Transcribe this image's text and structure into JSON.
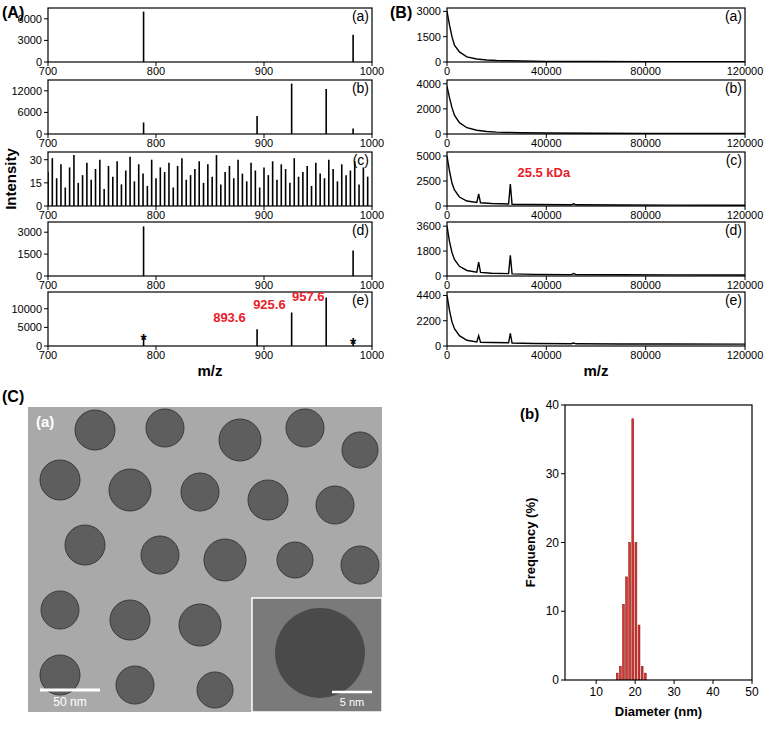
{
  "panel_labels": [
    "(A)",
    "(B)",
    "(C)"
  ],
  "image": {
    "label": "(a)",
    "scale_bar": "50 nm",
    "inset_scale_bar": "5 nm"
  },
  "chart_data": [
    {
      "type": "stem",
      "title": "(a)",
      "xlim": [
        700,
        1000
      ],
      "xticks": [
        700,
        800,
        900,
        1000
      ],
      "ylim": [
        0,
        7500
      ],
      "yticks": [
        0,
        3000,
        6000
      ],
      "color": "#000000",
      "x": [
        788.5,
        982.5
      ],
      "values": [
        7000,
        3800
      ]
    },
    {
      "type": "stem",
      "title": "(b)",
      "xlim": [
        700,
        1000
      ],
      "xticks": [
        700,
        800,
        900,
        1000
      ],
      "ylim": [
        0,
        15000
      ],
      "yticks": [
        0,
        6000,
        12000
      ],
      "color": "#000000",
      "x": [
        788.5,
        893.6,
        925.6,
        957.6,
        982.5
      ],
      "values": [
        3200,
        5000,
        14000,
        12500,
        1500
      ]
    },
    {
      "type": "stem",
      "title": "(c)",
      "ylabel": "Intensity",
      "xlim": [
        700,
        1000
      ],
      "xticks": [
        700,
        800,
        900,
        1000
      ],
      "ylim": [
        0,
        35
      ],
      "yticks": [
        0,
        15,
        30
      ],
      "color": "#000000",
      "x": [
        700,
        704,
        708,
        712,
        716,
        720,
        724,
        728,
        732,
        736,
        740,
        744,
        748,
        752,
        756,
        760,
        764,
        768,
        772,
        776,
        780,
        784,
        788,
        792,
        796,
        800,
        804,
        808,
        812,
        816,
        820,
        824,
        828,
        832,
        836,
        840,
        844,
        848,
        852,
        856,
        860,
        864,
        868,
        872,
        876,
        880,
        884,
        888,
        892,
        896,
        900,
        904,
        908,
        912,
        916,
        920,
        924,
        928,
        932,
        936,
        940,
        944,
        948,
        952,
        956,
        960,
        964,
        968,
        972,
        976,
        980,
        984,
        988,
        992,
        996
      ],
      "values": [
        22,
        31,
        18,
        27,
        12,
        25,
        33,
        15,
        20,
        28,
        17,
        24,
        30,
        11,
        26,
        19,
        29,
        14,
        23,
        32,
        16,
        27,
        21,
        13,
        30,
        18,
        25,
        22,
        28,
        12,
        26,
        31,
        17,
        20,
        24,
        29,
        15,
        27,
        19,
        33,
        14,
        22,
        26,
        18,
        30,
        21,
        16,
        28,
        23,
        12,
        25,
        20,
        29,
        17,
        27,
        24,
        15,
        31,
        19,
        22,
        26,
        13,
        28,
        21,
        18,
        30,
        24,
        16,
        27,
        20,
        23,
        29,
        14,
        25,
        19
      ]
    },
    {
      "type": "stem",
      "title": "(d)",
      "xlim": [
        700,
        1000
      ],
      "xticks": [
        700,
        800,
        900,
        1000
      ],
      "ylim": [
        0,
        3700
      ],
      "yticks": [
        0,
        1500,
        3000
      ],
      "color": "#000000",
      "x": [
        788.5,
        982.5
      ],
      "values": [
        3400,
        1750
      ]
    },
    {
      "type": "stem",
      "title": "(e)",
      "xlabel": "m/z",
      "xlim": [
        700,
        1000
      ],
      "xticks": [
        700,
        800,
        900,
        1000
      ],
      "ylim": [
        0,
        14500
      ],
      "yticks": [
        0,
        5000,
        10000
      ],
      "color": "#000000",
      "x": [
        788.5,
        893.6,
        925.6,
        957.6,
        982.5
      ],
      "values": [
        2000,
        4500,
        9000,
        13000,
        1000
      ],
      "annotations": [
        {
          "text": "893.6",
          "x": 868,
          "y": 6500,
          "color": "#e8202a"
        },
        {
          "text": "925.6",
          "x": 905,
          "y": 10000,
          "color": "#e8202a"
        },
        {
          "text": "957.6",
          "x": 941,
          "y": 12000,
          "color": "#e8202a"
        },
        {
          "text": "*",
          "x": 788.5,
          "y": 2400,
          "color": "#000000"
        },
        {
          "text": "*",
          "x": 982.5,
          "y": 1400,
          "color": "#000000"
        }
      ]
    },
    {
      "type": "line",
      "title": "(a)",
      "xlim": [
        0,
        120000
      ],
      "xticks": [
        0,
        40000,
        80000,
        120000
      ],
      "ylim": [
        0,
        3200
      ],
      "yticks": [
        0,
        1500,
        3000
      ],
      "color": "#000000",
      "x": [
        0,
        1000,
        2000,
        3000,
        5000,
        8000,
        12000,
        16000,
        20000,
        30000,
        40000,
        60000,
        80000,
        100000,
        120000
      ],
      "values": [
        3000,
        2200,
        1500,
        1000,
        600,
        300,
        180,
        120,
        90,
        60,
        40,
        30,
        25,
        20,
        20
      ]
    },
    {
      "type": "line",
      "title": "(b)",
      "xlim": [
        0,
        120000
      ],
      "xticks": [
        0,
        40000,
        80000,
        120000
      ],
      "ylim": [
        0,
        4300
      ],
      "yticks": [
        0,
        2000,
        4000
      ],
      "color": "#000000",
      "x": [
        0,
        1000,
        2000,
        3000,
        5000,
        8000,
        12000,
        16000,
        20000,
        30000,
        40000,
        60000,
        80000,
        100000,
        120000
      ],
      "values": [
        3800,
        2900,
        2100,
        1500,
        900,
        500,
        300,
        200,
        150,
        100,
        80,
        60,
        50,
        40,
        40
      ]
    },
    {
      "type": "line",
      "title": "(c)",
      "xlim": [
        0,
        120000
      ],
      "xticks": [
        0,
        40000,
        80000,
        120000
      ],
      "ylim": [
        0,
        5400
      ],
      "yticks": [
        0,
        2500,
        5000
      ],
      "color": "#000000",
      "x": [
        0,
        1000,
        2000,
        3000,
        5000,
        8000,
        12000,
        12750,
        13500,
        18000,
        24800,
        25500,
        26200,
        35000,
        50000,
        51000,
        52000,
        70000,
        90000,
        120000
      ],
      "values": [
        5000,
        3500,
        2300,
        1600,
        900,
        500,
        350,
        1200,
        320,
        250,
        200,
        2200,
        180,
        150,
        120,
        220,
        120,
        100,
        90,
        80
      ],
      "annotations": [
        {
          "text": "25.5 kDa",
          "x": 39000,
          "y": 2900,
          "color": "#e8202a"
        }
      ]
    },
    {
      "type": "line",
      "title": "(d)",
      "xlim": [
        0,
        120000
      ],
      "xticks": [
        0,
        40000,
        80000,
        120000
      ],
      "ylim": [
        0,
        3900
      ],
      "yticks": [
        0,
        1800,
        3600
      ],
      "color": "#000000",
      "x": [
        0,
        1000,
        2000,
        3000,
        5000,
        8000,
        12000,
        12750,
        13500,
        18000,
        24800,
        25500,
        26200,
        35000,
        50000,
        51000,
        52000,
        70000,
        90000,
        120000
      ],
      "values": [
        3600,
        2500,
        1700,
        1200,
        700,
        400,
        280,
        1000,
        260,
        200,
        170,
        1500,
        150,
        120,
        100,
        180,
        100,
        90,
        80,
        70
      ]
    },
    {
      "type": "line",
      "title": "(e)",
      "xlabel": "m/z",
      "xlim": [
        0,
        120000
      ],
      "xticks": [
        0,
        40000,
        80000,
        120000
      ],
      "ylim": [
        0,
        4700
      ],
      "yticks": [
        0,
        2200,
        4400
      ],
      "color": "#000000",
      "x": [
        0,
        1000,
        2000,
        3000,
        5000,
        8000,
        12000,
        12750,
        13500,
        18000,
        24800,
        25500,
        26200,
        35000,
        50000,
        51000,
        52000,
        70000,
        90000,
        120000
      ],
      "values": [
        4400,
        3100,
        2100,
        1500,
        900,
        500,
        350,
        900,
        330,
        300,
        280,
        1100,
        260,
        220,
        200,
        260,
        190,
        180,
        170,
        160
      ]
    },
    {
      "type": "histogram",
      "title": "(b)",
      "xlabel": "Diameter (nm)",
      "ylabel": "Frequency (%)",
      "xlim": [
        2,
        50
      ],
      "xticks": [
        10,
        20,
        30,
        40,
        50
      ],
      "ylim": [
        0,
        40
      ],
      "yticks": [
        0,
        10,
        20,
        30,
        40
      ],
      "color": "#e0312b",
      "bins": [
        15,
        15.8,
        16.6,
        17.4,
        18.2,
        19,
        19.8,
        20.6,
        21.4,
        22.2,
        23
      ],
      "values": [
        1,
        2,
        11,
        15,
        20,
        38,
        20,
        8,
        2,
        1
      ]
    }
  ]
}
